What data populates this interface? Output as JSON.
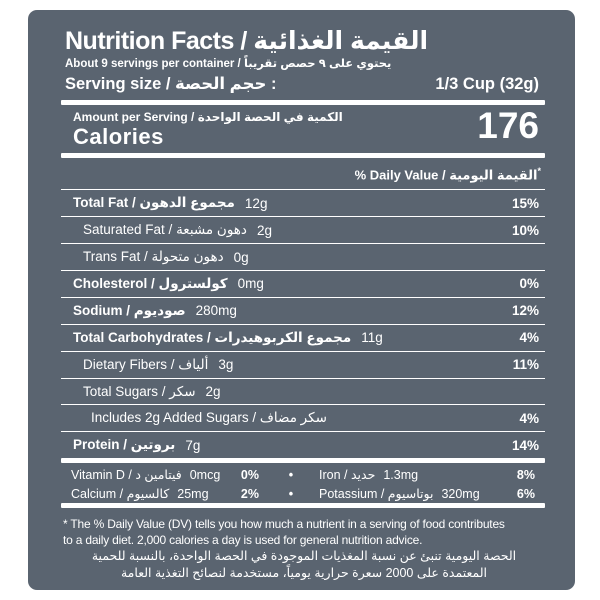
{
  "colors": {
    "panel_bg": "#5a6470",
    "text": "#ffffff",
    "page_bg": "#ffffff"
  },
  "header": {
    "title": "Nutrition Facts / القيمة الغذائية",
    "servings": "About 9 servings per container / يحتوي على ٩ حصص تقريباً",
    "serving_size_label": "Serving size / حجم الحصة :",
    "serving_size_value": "1/3 Cup (32g)"
  },
  "calories": {
    "amount_per_serving": "Amount per Serving / الكمية في الحصة الواحدة",
    "label": "Calories",
    "value": "176"
  },
  "daily_value_header": "% Daily Value / القيمة اليومية",
  "daily_value_asterisk": "*",
  "nutrients": [
    {
      "label": "Total Fat / مجموع الدهون",
      "amount": "12g",
      "dv": "15%"
    },
    {
      "label": "Saturated Fat / دهون مشبعة",
      "amount": "2g",
      "dv": "10%"
    },
    {
      "label": "Trans Fat / دهون متحولة",
      "amount": "0g",
      "dv": ""
    },
    {
      "label": "Cholesterol / كولسترول",
      "amount": "0mg",
      "dv": "0%"
    },
    {
      "label": "Sodium / صوديوم",
      "amount": "280mg",
      "dv": "12%"
    },
    {
      "label": "Total Carbohydrates / مجموع الكربوهيدرات",
      "amount": "11g",
      "dv": "4%"
    },
    {
      "label": "Dietary Fibers / ألياف",
      "amount": "3g",
      "dv": "11%"
    },
    {
      "label": "Total Sugars / سكر",
      "amount": "2g",
      "dv": ""
    },
    {
      "label": "Includes 2g Added Sugars / سكر مضاف",
      "amount": "",
      "dv": "4%"
    },
    {
      "label": "Protein / بروتين",
      "amount": "7g",
      "dv": "14%"
    }
  ],
  "micronutrients": {
    "bullet": "•",
    "rows": [
      {
        "left_label": "Vitamin D / فيتامين د",
        "left_amount": "0mcg",
        "left_dv": "0%",
        "right_label": "Iron / حديد",
        "right_amount": "1.3mg",
        "right_dv": "8%"
      },
      {
        "left_label": "Calcium / كالسيوم",
        "left_amount": "25mg",
        "left_dv": "2%",
        "right_label": "Potassium / بوتاسيوم",
        "right_amount": "320mg",
        "right_dv": "6%"
      }
    ]
  },
  "footnote": {
    "en_line1": "* The % Daily Value (DV) tells you how much a nutrient in a serving of food contributes",
    "en_line2": "to a daily diet. 2,000 calories a day is used for general nutrition advice.",
    "ar_line1": "الحصة اليومية تنبئ عن نسبة المغذيات الموجودة في الحصة الواحدة، بالنسبة للحمية",
    "ar_line2": "المعتمدة على 2000 سعرة حرارية يومياً، مستخدمة لنصائح التغذية العامة"
  }
}
